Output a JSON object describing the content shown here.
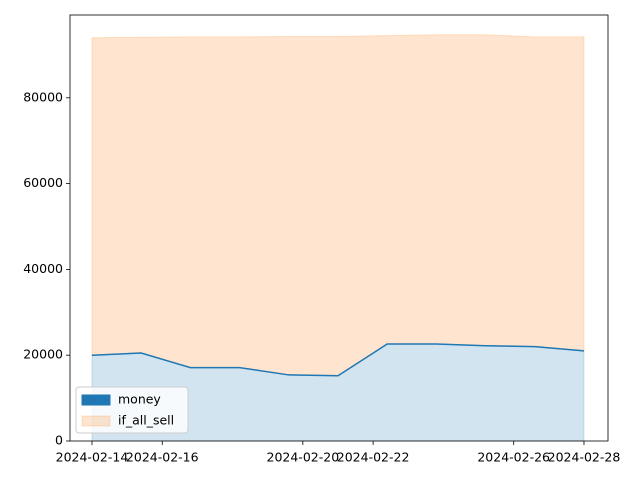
{
  "chart_data": {
    "type": "area",
    "x": [
      "2024-02-14T00:00",
      "2024-02-15T09:36",
      "2024-02-16T19:12",
      "2024-02-18T04:48",
      "2024-02-19T14:24",
      "2024-02-21T00:00",
      "2024-02-22T09:36",
      "2024-02-23T19:12",
      "2024-02-25T04:48",
      "2024-02-26T14:24",
      "2024-02-28T00:00"
    ],
    "series": [
      {
        "name": "money",
        "color": "#1f77b4",
        "values": [
          20000,
          20500,
          17100,
          17100,
          15400,
          15200,
          22600,
          22600,
          22200,
          22000,
          21000
        ]
      },
      {
        "name": "if_all_sell",
        "color": "#ff7f0e",
        "values": [
          94000,
          94100,
          94200,
          94200,
          94300,
          94300,
          94500,
          94700,
          94700,
          94200,
          94200
        ]
      }
    ],
    "xlim": [
      "2024-02-13T09:00",
      "2024-02-28T16:24"
    ],
    "xticks": [
      "2024-02-14",
      "2024-02-16",
      "2024-02-20",
      "2024-02-22",
      "2024-02-26",
      "2024-02-28"
    ],
    "ylim": [
      0,
      99300
    ],
    "yticks": [
      0,
      20000,
      40000,
      60000,
      80000
    ],
    "legend": "lower left"
  }
}
